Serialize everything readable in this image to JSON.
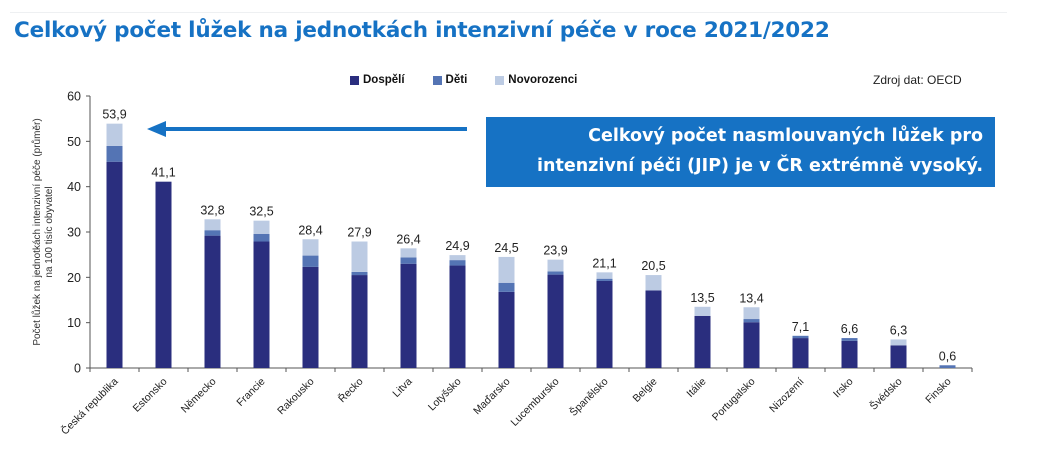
{
  "title": "Celkový počet lůžek na jednotkách intenzivní péče v roce 2021/2022",
  "source": "Zdroj dat: OECD",
  "callout": {
    "line1": "Celkový počet nasmlouvaných lůžek pro",
    "line2": "intenzivní péči (JIP) je v ČR extrémně vysoký."
  },
  "colors": {
    "title": "#1672c4",
    "callout_bg": "#1672c4",
    "arrow": "#1672c4",
    "adults": "#2a2e7e",
    "children": "#5474b4",
    "newborns": "#bccbe3"
  },
  "chart_data": {
    "type": "bar",
    "stacked": true,
    "title": "Celkový počet lůžek na jednotkách intenzivní péče v roce 2021/2022",
    "xlabel": "",
    "ylabel": "Počet lůžek na jednotkách intenzivní péče (průměr) na 100 tisíc obyvatel",
    "ylabel_lines": [
      "Počet lůžek na jednotkách intenzivní péče (průměr)",
      "na 100 tisíc obyvatel"
    ],
    "ylim": [
      0,
      60
    ],
    "yticks": [
      0,
      10,
      20,
      30,
      40,
      50,
      60
    ],
    "grid": false,
    "legend_position": "top",
    "categories": [
      "Česká republika",
      "Estonsko",
      "Německo",
      "Francie",
      "Rakousko",
      "Řecko",
      "Litva",
      "Lotyšsko",
      "Maďarsko",
      "Lucembursko",
      "Španělsko",
      "Belgie",
      "Itálie",
      "Portugalsko",
      "Nizozemí",
      "Irsko",
      "Švédsko",
      "Finsko"
    ],
    "series": [
      {
        "name": "Dospělí",
        "values": [
          45.5,
          41.1,
          29.2,
          27.9,
          22.3,
          20.5,
          23.0,
          22.6,
          16.8,
          20.6,
          19.2,
          17.1,
          11.5,
          10.1,
          6.6,
          6.0,
          5.0,
          0.0
        ]
      },
      {
        "name": "Děti",
        "values": [
          3.5,
          0.0,
          1.2,
          1.7,
          2.5,
          0.7,
          1.4,
          1.2,
          2.0,
          0.7,
          0.5,
          0.0,
          0.0,
          0.7,
          0.5,
          0.6,
          0.0,
          0.6
        ]
      },
      {
        "name": "Novorozenci",
        "values": [
          4.9,
          0.0,
          2.4,
          2.9,
          3.6,
          6.7,
          2.0,
          1.1,
          5.7,
          2.6,
          1.4,
          3.4,
          2.0,
          2.6,
          0.0,
          0.0,
          1.3,
          0.0
        ]
      }
    ],
    "totals": [
      53.9,
      41.1,
      32.8,
      32.5,
      28.4,
      27.9,
      26.4,
      24.9,
      24.5,
      23.9,
      21.1,
      20.5,
      13.5,
      13.4,
      7.1,
      6.6,
      6.3,
      0.6
    ],
    "total_labels": [
      "53,9",
      "41,1",
      "32,8",
      "32,5",
      "28,4",
      "27,9",
      "26,4",
      "24,9",
      "24,5",
      "23,9",
      "21,1",
      "20,5",
      "13,5",
      "13,4",
      "7,1",
      "6,6",
      "6,3",
      "0,6"
    ],
    "annotations": [
      "Celkový počet nasmlouvaných lůžek pro intenzivní péči (JIP) je v ČR extrémně vysoký."
    ]
  }
}
